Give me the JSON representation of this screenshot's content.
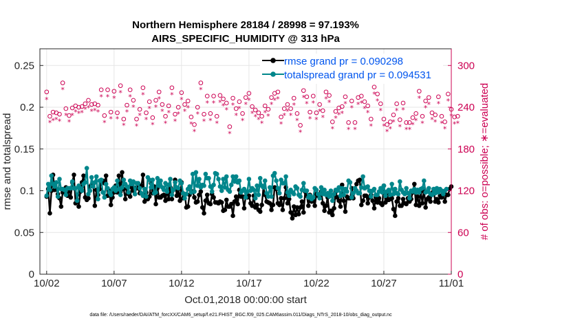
{
  "chart_data": {
    "type": "line",
    "title_line1": "Northern Hemisphere 28184 / 28998 = 97.193%",
    "title_line2": "AIRS_SPECIFIC_HUMIDITY @ 313 hPa",
    "xlabel": "Oct.01,2018 00:00:00 start",
    "ylabel_left": "rmse and totalspread",
    "ylabel_right": "# of obs: o=possible; ∗=evaluated",
    "ylim_left": [
      0,
      0.27
    ],
    "ylim_right": [
      0,
      324
    ],
    "xlim": [
      0.5,
      31
    ],
    "y_ticks_left": [
      "0",
      "0.05",
      "0.1",
      "0.15",
      "0.2",
      "0.25"
    ],
    "y_ticks_right": [
      "0",
      "60",
      "120",
      "180",
      "240",
      "300"
    ],
    "x_tick_labels": [
      "10/02",
      "10/07",
      "10/12",
      "10/17",
      "10/22",
      "10/27",
      "11/01"
    ],
    "x_tick_values": [
      1,
      6,
      11,
      16,
      21,
      26,
      31
    ],
    "grid": true,
    "footer": "data file: /Users/raeder/DAI/ATM_forcXX/CAM6_setup/f.e21.FHIST_BGC.f09_025.CAM6assim.011/Diags_NTrS_2018-10/obs_diag_output.nc",
    "colors": {
      "rmse": "#000000",
      "spread": "#00868b",
      "obs": "#cc0052",
      "legend_text": "#0055ee"
    },
    "series": [
      {
        "name": "rmse grand pr = 0.090298",
        "values": [
          0.093,
          0.102,
          0.073,
          0.1,
          0.119,
          0.101,
          0.102,
          0.096,
          0.091,
          0.081,
          0.098,
          0.1,
          0.104,
          0.094,
          0.102,
          0.092,
          0.11,
          0.119,
          0.085,
          0.095,
          0.081,
          0.099,
          0.11,
          0.118,
          0.092,
          0.089,
          0.091,
          0.105,
          0.107,
          0.108,
          0.082,
          0.101,
          0.095,
          0.102,
          0.11,
          0.112,
          0.109,
          0.118,
          0.094,
          0.1,
          0.083,
          0.092,
          0.098,
          0.106,
          0.098,
          0.118,
          0.099,
          0.122,
          0.102,
          0.09,
          0.103,
          0.096,
          0.093,
          0.104,
          0.1,
          0.096,
          0.104,
          0.103,
          0.097,
          0.106,
          0.119,
          0.087,
          0.098,
          0.09,
          0.093,
          0.109,
          0.097,
          0.105,
          0.084,
          0.103,
          0.092,
          0.092,
          0.094,
          0.095,
          0.088,
          0.1,
          0.09,
          0.104,
          0.09,
          0.101,
          0.113,
          0.094,
          0.102,
          0.088,
          0.11,
          0.091,
          0.096,
          0.08,
          0.081,
          0.095,
          0.099,
          0.099,
          0.092,
          0.086,
          0.087,
          0.095,
          0.099,
          0.08,
          0.073,
          0.088,
          0.095,
          0.085,
          0.084,
          0.096,
          0.092,
          0.086,
          0.086,
          0.085,
          0.087,
          0.086,
          0.076,
          0.077,
          0.089,
          0.081,
          0.081,
          0.084,
          0.07,
          0.087,
          0.093,
          0.084,
          0.101,
          0.093,
          0.093,
          0.079,
          0.093,
          0.092,
          0.094,
          0.085,
          0.082,
          0.094,
          0.08,
          0.083,
          0.077,
          0.075,
          0.083,
          0.104,
          0.095,
          0.087,
          0.086,
          0.085,
          0.077,
          0.083,
          0.104,
          0.102,
          0.085,
          0.083,
          0.091,
          0.077,
          0.091,
          0.104,
          0.085,
          0.09,
          0.074,
          0.067,
          0.081,
          0.071,
          0.08,
          0.072,
          0.08,
          0.087,
          0.074,
          0.099,
          0.094,
          0.082,
          0.095,
          0.087,
          0.088,
          0.082,
          0.096,
          0.094,
          0.095,
          0.099,
          0.085,
          0.076,
          0.082,
          0.092,
          0.074,
          0.076,
          0.071,
          0.079,
          0.099,
          0.092,
          0.088,
          0.081,
          0.107,
          0.088,
          0.075,
          0.093,
          0.091,
          0.091,
          0.103,
          0.091,
          0.103,
          0.108,
          0.112,
          0.113,
          0.083,
          0.088,
          0.094,
          0.094,
          0.085,
          0.092,
          0.095,
          0.088,
          0.079,
          0.092,
          0.086,
          0.091,
          0.085,
          0.083,
          0.106,
          0.086,
          0.095,
          0.089,
          0.09,
          0.091,
          0.078,
          0.07,
          0.087,
          0.091,
          0.082,
          0.082,
          0.09,
          0.085,
          0.084,
          0.091,
          0.087,
          0.09,
          0.098,
          0.108,
          0.083,
          0.093,
          0.082,
          0.099,
          0.085,
          0.102,
          0.08,
          0.09,
          0.092,
          0.087,
          0.097,
          0.1,
          0.087,
          0.09,
          0.086,
          0.094,
          0.092,
          0.097,
          0.087,
          0.095,
          0.095,
          0.102,
          0.105
        ]
      },
      {
        "name": "totalspread grand pr = 0.094531",
        "values": [
          0.094,
          0.108,
          0.101,
          0.118,
          0.108,
          0.105,
          0.11,
          0.093,
          0.114,
          0.102,
          0.102,
          0.101,
          0.095,
          0.103,
          0.103,
          0.103,
          0.111,
          0.103,
          0.103,
          0.088,
          0.106,
          0.103,
          0.1,
          0.108,
          0.11,
          0.127,
          0.096,
          0.1,
          0.116,
          0.105,
          0.11,
          0.117,
          0.09,
          0.112,
          0.113,
          0.098,
          0.092,
          0.108,
          0.103,
          0.098,
          0.095,
          0.102,
          0.104,
          0.1,
          0.112,
          0.102,
          0.095,
          0.104,
          0.113,
          0.108,
          0.105,
          0.098,
          0.112,
          0.108,
          0.111,
          0.096,
          0.109,
          0.109,
          0.103,
          0.097,
          0.094,
          0.102,
          0.093,
          0.116,
          0.113,
          0.104,
          0.113,
          0.097,
          0.098,
          0.115,
          0.106,
          0.112,
          0.104,
          0.101,
          0.109,
          0.099,
          0.107,
          0.114,
          0.095,
          0.101,
          0.11,
          0.104,
          0.103,
          0.112,
          0.109,
          0.097,
          0.091,
          0.096,
          0.102,
          0.105,
          0.098,
          0.12,
          0.099,
          0.122,
          0.106,
          0.114,
          0.104,
          0.107,
          0.106,
          0.12,
          0.115,
          0.115,
          0.105,
          0.099,
          0.107,
          0.121,
          0.12,
          0.114,
          0.105,
          0.1,
          0.114,
          0.104,
          0.117,
          0.101,
          0.099,
          0.107,
          0.117,
          0.111,
          0.117,
          0.11,
          0.112,
          0.098,
          0.1,
          0.102,
          0.092,
          0.099,
          0.114,
          0.1,
          0.103,
          0.101,
          0.091,
          0.106,
          0.095,
          0.115,
          0.106,
          0.104,
          0.112,
          0.097,
          0.093,
          0.104,
          0.093,
          0.118,
          0.121,
          0.112,
          0.103,
          0.097,
          0.113,
          0.109,
          0.109,
          0.117,
          0.098,
          0.094,
          0.101,
          0.098,
          0.096,
          0.105,
          0.103,
          0.095,
          0.093,
          0.101,
          0.109,
          0.1,
          0.1,
          0.092,
          0.094,
          0.09,
          0.092,
          0.103,
          0.101,
          0.096,
          0.091,
          0.104,
          0.096,
          0.101,
          0.095,
          0.097,
          0.093,
          0.1,
          0.088,
          0.096,
          0.101,
          0.1,
          0.104,
          0.094,
          0.103,
          0.095,
          0.102,
          0.099,
          0.112,
          0.11,
          0.092,
          0.097,
          0.103,
          0.1,
          0.097,
          0.097,
          0.104,
          0.117,
          0.103,
          0.104,
          0.105,
          0.1,
          0.093,
          0.1,
          0.102,
          0.095,
          0.095,
          0.099,
          0.103,
          0.098,
          0.106,
          0.094,
          0.099,
          0.101,
          0.095,
          0.108,
          0.096,
          0.102,
          0.097,
          0.096,
          0.111,
          0.101,
          0.098,
          0.096,
          0.103,
          0.097,
          0.091,
          0.1,
          0.099,
          0.102,
          0.098,
          0.101,
          0.098,
          0.102,
          0.103,
          0.112,
          0.098,
          0.099,
          0.103,
          0.096,
          0.095,
          0.102,
          0.097,
          0.103,
          0.098,
          0.102,
          0.1,
          0.096,
          0.1,
          0.102
        ]
      },
      {
        "name": "possible obs",
        "values": [
          262,
          238,
          227,
          246,
          233,
          229,
          232,
          238,
          230,
          252,
          275,
          255,
          238,
          231,
          228,
          243,
          239,
          247,
          242,
          272,
          240,
          237,
          241,
          238,
          245,
          273,
          250,
          227,
          244,
          216,
          245,
          281,
          243,
          221,
          265,
          247,
          228,
          251,
          265,
          221,
          233,
          249,
          263,
          239,
          232,
          263,
          271,
          260,
          223,
          241,
          243,
          210,
          265,
          236,
          250,
          256,
          223,
          190,
          237,
          262,
          268,
          252,
          232,
          259,
          248,
          255,
          225,
          233,
          250,
          239,
          262,
          257,
          244,
          222,
          227,
          238,
          242,
          245,
          268,
          225,
          230,
          254,
          240,
          271,
          261,
          228,
          244,
          246,
          249,
          232,
          226,
          262,
          215,
          231,
          240,
          259,
          275,
          264,
          230,
          244,
          256,
          249,
          231,
          245,
          256,
          232,
          227,
          224,
          257,
          246,
          252,
          250,
          246,
          224,
          212,
          237,
          253,
          242,
          238,
          215,
          248,
          237,
          231,
          261,
          254,
          228,
          260,
          250,
          241,
          218,
          236,
          240,
          232,
          221,
          227,
          268,
          242,
          232,
          237,
          225,
          254,
          241,
          260,
          228,
          262,
          248,
          226,
          240,
          238,
          221,
          244,
          248,
          238,
          253,
          253,
          237,
          231,
          244,
          214,
          236,
          264,
          250,
          255,
          268,
          233,
          262,
          256,
          229,
          232,
          247,
          244,
          225,
          235,
          250,
          262,
          250,
          257,
          242,
          219,
          261,
          234,
          241,
          239,
          250,
          241,
          237,
          255,
          226,
          218,
          252,
          249,
          213,
          218,
          232,
          254,
          246,
          256,
          228,
          248,
          235,
          242,
          234,
          223,
          232,
          269,
          237,
          259,
          232,
          245,
          254,
          223,
          210,
          215,
          237,
          219,
          225,
          229,
          220,
          245,
          249,
          222,
          234,
          246,
          249,
          218,
          226,
          218,
          247,
          225,
          247,
          231,
          214,
          263,
          246,
          227,
          229,
          249,
          251,
          254,
          241,
          232,
          251,
          229,
          232,
          255,
          205,
          227,
          237,
          219,
          244,
          259,
          243,
          237,
          232,
          226,
          212,
          227,
          253
        ]
      },
      {
        "name": "evaluated obs",
        "values": [
          252,
          227,
          219,
          236,
          222,
          220,
          223,
          230,
          221,
          244,
          266,
          246,
          229,
          222,
          220,
          232,
          229,
          239,
          234,
          262,
          232,
          228,
          233,
          229,
          238,
          265,
          240,
          220,
          235,
          207,
          236,
          272,
          234,
          213,
          256,
          238,
          219,
          243,
          256,
          213,
          224,
          240,
          254,
          231,
          224,
          254,
          262,
          251,
          215,
          232,
          234,
          202,
          256,
          227,
          241,
          247,
          214,
          181,
          229,
          253,
          259,
          243,
          223,
          250,
          239,
          246,
          216,
          224,
          241,
          230,
          253,
          248,
          235,
          214,
          218,
          229,
          233,
          236,
          259,
          216,
          221,
          245,
          231,
          262,
          252,
          219,
          235,
          237,
          240,
          223,
          217,
          253,
          206,
          222,
          231,
          250,
          266,
          255,
          221,
          235,
          247,
          240,
          222,
          236,
          247,
          223,
          218,
          215,
          248,
          237,
          243,
          241,
          237,
          215,
          203,
          228,
          244,
          233,
          229,
          206,
          239,
          228,
          222,
          252,
          245,
          219,
          251,
          241,
          232,
          209,
          227,
          231,
          223,
          212,
          218,
          259,
          233,
          223,
          228,
          216,
          245,
          232,
          251,
          219,
          253,
          239,
          217,
          231,
          229,
          212,
          235,
          239,
          229,
          244,
          244,
          228,
          222,
          235,
          205,
          227,
          255,
          241,
          246,
          259,
          224,
          253,
          247,
          220,
          223,
          238,
          235,
          216,
          226,
          241,
          253,
          241,
          248,
          233,
          210,
          252,
          225,
          232,
          230,
          241,
          232,
          228,
          246,
          217,
          209,
          243,
          240,
          204,
          209,
          223,
          245,
          237,
          247,
          219,
          239,
          226,
          233,
          225,
          214,
          223,
          260,
          228,
          250,
          223,
          236,
          245,
          214,
          201,
          206,
          228,
          210,
          216,
          220,
          211,
          236,
          240,
          213,
          225,
          237,
          240,
          209,
          217,
          209,
          238,
          216,
          238,
          222,
          205,
          254,
          237,
          218,
          220,
          240,
          242,
          245,
          232,
          223,
          242,
          220,
          223,
          246,
          196,
          218,
          228,
          210,
          235,
          250,
          234,
          228,
          223,
          217,
          203,
          218,
          244
        ]
      }
    ]
  }
}
